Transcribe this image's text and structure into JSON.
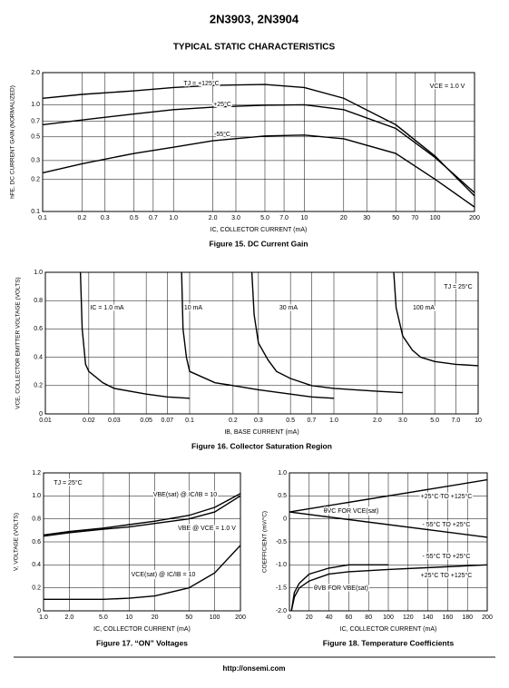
{
  "header": {
    "title": "2N3903, 2N3904",
    "subtitle": "TYPICAL STATIC CHARACTERISTICS"
  },
  "footer": "http://onsemi.com",
  "chart_data": [
    {
      "type": "line",
      "title": "Figure 15. DC Current Gain",
      "xlabel": "IC, COLLECTOR CURRENT (mA)",
      "ylabel": "hFE, DC CURRENT GAIN (NORMALIZED)",
      "xscale": "log",
      "yscale": "log",
      "grid": true,
      "xlim": [
        0.1,
        200
      ],
      "ylim": [
        0.1,
        2.0
      ],
      "xticks": [
        0.1,
        0.2,
        0.3,
        0.5,
        0.7,
        {
          "value": 1,
          "label": "1.0"
        },
        {
          "value": 2,
          "label": "2.0"
        },
        {
          "value": 3,
          "label": "3.0"
        },
        {
          "value": 5,
          "label": "5.0"
        },
        {
          "value": 7,
          "label": "7.0"
        },
        10,
        20,
        30,
        50,
        70,
        100,
        200
      ],
      "yticks": [
        0.1,
        0.2,
        0.3,
        0.5,
        0.7,
        {
          "value": 1,
          "label": "1.0"
        },
        {
          "value": 2,
          "label": "2.0"
        }
      ],
      "x": [
        0.1,
        0.2,
        0.5,
        1,
        2,
        5,
        10,
        20,
        50,
        100,
        200
      ],
      "series": [
        {
          "name": "TJ = +125°C",
          "color": "#000000",
          "values": [
            1.15,
            1.25,
            1.35,
            1.45,
            1.52,
            1.55,
            1.45,
            1.15,
            0.65,
            0.33,
            0.14
          ]
        },
        {
          "name": "+25°C",
          "color": "#000000",
          "values": [
            0.65,
            0.72,
            0.82,
            0.9,
            0.95,
            0.99,
            1.0,
            0.9,
            0.6,
            0.32,
            0.15
          ]
        },
        {
          "name": "-55°C",
          "color": "#000000",
          "values": [
            0.23,
            0.28,
            0.35,
            0.4,
            0.46,
            0.51,
            0.52,
            0.48,
            0.35,
            0.2,
            0.11
          ]
        }
      ],
      "annotations": [
        "VCE = 1.0 V"
      ]
    },
    {
      "type": "line",
      "title": "Figure 16. Collector Saturation Region",
      "xlabel": "IB, BASE CURRENT (mA)",
      "ylabel": "VCE, COLLECTOR EMITTER VOLTAGE (VOLTS)",
      "xscale": "log",
      "yscale": "linear",
      "grid": true,
      "xlim": [
        0.01,
        10
      ],
      "ylim": [
        0,
        1.0
      ],
      "xticks": [
        0.01,
        0.02,
        0.03,
        0.05,
        0.07,
        0.1,
        0.2,
        0.3,
        0.5,
        0.7,
        {
          "value": 1,
          "label": "1.0"
        },
        {
          "value": 2,
          "label": "2.0"
        },
        {
          "value": 3,
          "label": "3.0"
        },
        {
          "value": 5,
          "label": "5.0"
        },
        {
          "value": 7,
          "label": "7.0"
        },
        10
      ],
      "yticks": [
        0,
        0.2,
        0.4,
        0.6,
        0.8,
        {
          "value": 1,
          "label": "1.0"
        }
      ],
      "series": [
        {
          "name": "IC = 1.0 mA",
          "color": "#000000",
          "x": [
            0.0175,
            0.018,
            0.019,
            0.02,
            0.025,
            0.03,
            0.05,
            0.07,
            0.1
          ],
          "values": [
            1.0,
            0.6,
            0.35,
            0.3,
            0.22,
            0.18,
            0.14,
            0.12,
            0.11
          ]
        },
        {
          "name": "10 mA",
          "color": "#000000",
          "x": [
            0.088,
            0.09,
            0.095,
            0.1,
            0.15,
            0.2,
            0.3,
            0.5,
            0.7,
            1.0
          ],
          "values": [
            1.0,
            0.6,
            0.4,
            0.3,
            0.22,
            0.2,
            0.17,
            0.14,
            0.12,
            0.11
          ]
        },
        {
          "name": "30 mA",
          "color": "#000000",
          "x": [
            0.27,
            0.28,
            0.3,
            0.35,
            0.4,
            0.5,
            0.7,
            1.0,
            2.0,
            3.0
          ],
          "values": [
            1.0,
            0.7,
            0.5,
            0.38,
            0.3,
            0.25,
            0.2,
            0.18,
            0.16,
            0.15
          ]
        },
        {
          "name": "100 mA",
          "color": "#000000",
          "x": [
            2.6,
            2.7,
            3.0,
            3.5,
            4.0,
            5.0,
            7.0,
            10
          ],
          "values": [
            1.0,
            0.75,
            0.55,
            0.45,
            0.4,
            0.37,
            0.35,
            0.34
          ]
        }
      ],
      "annotations": [
        "TJ = 25°C"
      ]
    },
    {
      "type": "line",
      "title": "Figure 17. “ON” Voltages",
      "xlabel": "IC, COLLECTOR CURRENT (mA)",
      "ylabel": "V, VOLTAGE (VOLTS)",
      "xscale": "log",
      "yscale": "linear",
      "grid": true,
      "xlim": [
        1,
        200
      ],
      "ylim": [
        0,
        1.2
      ],
      "xticks": [
        {
          "value": 1,
          "label": "1.0"
        },
        {
          "value": 2,
          "label": "2.0"
        },
        {
          "value": 5,
          "label": "5.0"
        },
        10,
        20,
        50,
        100,
        200
      ],
      "yticks": [
        0,
        0.2,
        0.4,
        0.6,
        0.8,
        {
          "value": 1,
          "label": "1.0"
        },
        1.2
      ],
      "x": [
        1,
        2,
        5,
        10,
        20,
        50,
        100,
        200
      ],
      "series": [
        {
          "name": "VBE(sat) @ IC/IB = 10",
          "color": "#000000",
          "values": [
            0.66,
            0.69,
            0.72,
            0.75,
            0.78,
            0.83,
            0.9,
            1.02
          ]
        },
        {
          "name": "VBE @ VCE = 1.0 V",
          "color": "#000000",
          "values": [
            0.65,
            0.68,
            0.71,
            0.73,
            0.76,
            0.8,
            0.86,
            1.0
          ]
        },
        {
          "name": "VCE(sat) @ IC/IB = 10",
          "color": "#000000",
          "values": [
            0.1,
            0.1,
            0.1,
            0.11,
            0.13,
            0.2,
            0.33,
            0.57
          ]
        }
      ],
      "annotations": [
        "TJ = 25°C"
      ]
    },
    {
      "type": "line",
      "title": "Figure 18. Temperature Coefficients",
      "xlabel": "IC, COLLECTOR CURRENT (mA)",
      "ylabel": "COEFFICIENT (mV/°C)",
      "xscale": "linear",
      "yscale": "linear",
      "grid": true,
      "xlim": [
        0,
        200
      ],
      "ylim": [
        -2.0,
        1.0
      ],
      "xticks": [
        0,
        20,
        40,
        60,
        80,
        100,
        120,
        140,
        160,
        180,
        200
      ],
      "yticks": [
        {
          "value": -2,
          "label": "-2.0"
        },
        -1.5,
        {
          "value": -1,
          "label": "-1.0"
        },
        -0.5,
        0,
        0.5,
        {
          "value": 1,
          "label": "1.0"
        }
      ],
      "series": [
        {
          "name": "+25°C TO +125°C",
          "color": "#000000",
          "x": [
            0,
            200
          ],
          "values": [
            0.15,
            0.85
          ]
        },
        {
          "name": "- 55°C TO +25°C",
          "color": "#000000",
          "x": [
            0,
            200
          ],
          "values": [
            0.15,
            -0.4
          ]
        },
        {
          "name": "- 55°C TO +25°C",
          "color": "#000000",
          "x": [
            2,
            5,
            10,
            20,
            40,
            60,
            80,
            100
          ],
          "values": [
            -2.0,
            -1.6,
            -1.4,
            -1.2,
            -1.07,
            -1.0,
            -1.0,
            -1.0
          ]
        },
        {
          "name": "+25°C TO +125°C",
          "color": "#000000",
          "x": [
            2,
            5,
            10,
            20,
            40,
            60,
            100,
            150,
            200
          ],
          "values": [
            -2.0,
            -1.7,
            -1.5,
            -1.35,
            -1.2,
            -1.15,
            -1.1,
            -1.05,
            -1.0
          ]
        }
      ],
      "annotations": [
        "θVC FOR VCE(sat)",
        "θVB FOR VBE(sat)"
      ]
    }
  ]
}
